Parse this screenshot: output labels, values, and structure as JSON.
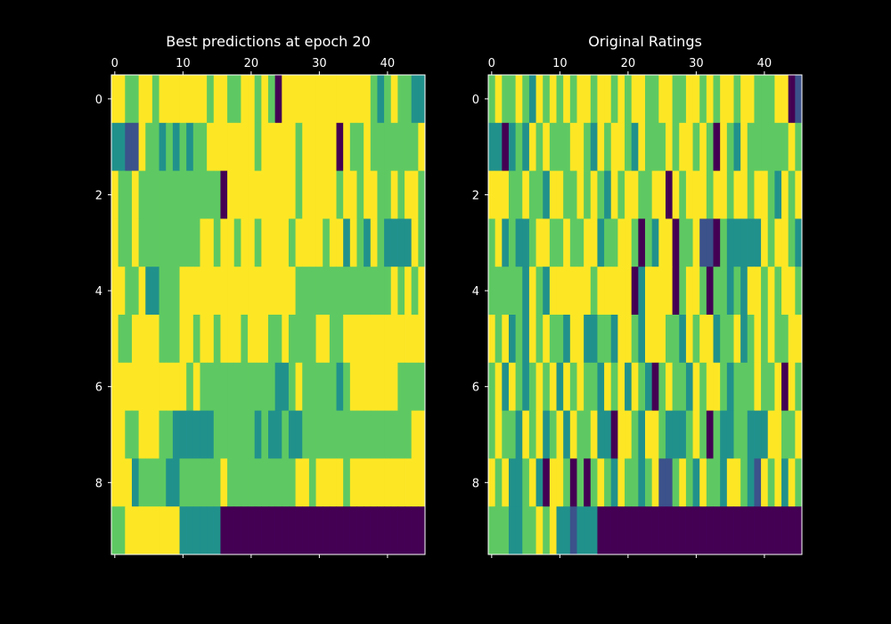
{
  "colors": {
    "background": "#000000",
    "foreground": "#ffffff",
    "colormap": "viridis",
    "palette": [
      "#440154",
      "#3b528b",
      "#21918c",
      "#5ec962",
      "#fde725"
    ]
  },
  "chart_data": [
    {
      "type": "heatmap",
      "title": "Best predictions at epoch 20",
      "xlabel": "",
      "ylabel": "",
      "x_ticks": [
        0,
        10,
        20,
        30,
        40
      ],
      "y_ticks": [
        0,
        2,
        4,
        6,
        8
      ],
      "x_tick_position": "top-and-bottom",
      "grid": false,
      "color_range": [
        0,
        4
      ],
      "values": [
        [
          4,
          4,
          3,
          3,
          4,
          4,
          3,
          4,
          4,
          4,
          4,
          4,
          4,
          4,
          3,
          4,
          4,
          3,
          3,
          4,
          4,
          3,
          4,
          3,
          0,
          4,
          4,
          4,
          4,
          4,
          4,
          4,
          4,
          4,
          4,
          4,
          4,
          4,
          3,
          2,
          3,
          4,
          3,
          3,
          2,
          2
        ],
        [
          2,
          2,
          1,
          1,
          4,
          3,
          3,
          2,
          3,
          2,
          3,
          2,
          3,
          3,
          4,
          4,
          4,
          4,
          4,
          4,
          4,
          3,
          4,
          4,
          4,
          4,
          4,
          3,
          4,
          4,
          4,
          4,
          4,
          0,
          4,
          3,
          3,
          4,
          3,
          3,
          3,
          3,
          3,
          3,
          3,
          4
        ],
        [
          4,
          3,
          3,
          4,
          3,
          3,
          3,
          3,
          3,
          3,
          3,
          3,
          3,
          3,
          3,
          3,
          0,
          4,
          4,
          4,
          4,
          4,
          4,
          4,
          4,
          4,
          4,
          3,
          4,
          4,
          4,
          4,
          4,
          3,
          4,
          4,
          3,
          4,
          4,
          3,
          3,
          4,
          3,
          4,
          4,
          3
        ],
        [
          4,
          3,
          3,
          4,
          3,
          3,
          3,
          3,
          3,
          3,
          3,
          3,
          3,
          4,
          4,
          3,
          4,
          4,
          3,
          4,
          4,
          3,
          4,
          4,
          4,
          4,
          3,
          4,
          4,
          4,
          4,
          3,
          4,
          4,
          2,
          4,
          3,
          2,
          4,
          3,
          2,
          2,
          2,
          2,
          4,
          3
        ],
        [
          4,
          4,
          3,
          3,
          4,
          2,
          2,
          3,
          3,
          3,
          4,
          4,
          4,
          4,
          4,
          4,
          4,
          4,
          4,
          4,
          4,
          4,
          4,
          4,
          4,
          4,
          4,
          3,
          3,
          3,
          3,
          3,
          3,
          3,
          3,
          3,
          3,
          3,
          3,
          3,
          3,
          4,
          3,
          4,
          3,
          4
        ],
        [
          4,
          3,
          3,
          4,
          4,
          4,
          4,
          3,
          3,
          3,
          4,
          4,
          3,
          4,
          4,
          3,
          4,
          4,
          4,
          3,
          4,
          4,
          4,
          3,
          3,
          4,
          3,
          3,
          3,
          3,
          4,
          4,
          3,
          3,
          4,
          4,
          4,
          4,
          4,
          4,
          4,
          4,
          4,
          4,
          4,
          4
        ],
        [
          4,
          4,
          4,
          4,
          4,
          4,
          4,
          4,
          4,
          4,
          4,
          3,
          4,
          3,
          3,
          3,
          3,
          3,
          3,
          3,
          3,
          3,
          3,
          3,
          2,
          2,
          3,
          4,
          3,
          3,
          3,
          3,
          3,
          2,
          3,
          4,
          4,
          4,
          4,
          4,
          4,
          4,
          3,
          3,
          3,
          3
        ],
        [
          4,
          4,
          3,
          3,
          4,
          4,
          4,
          3,
          3,
          2,
          2,
          2,
          2,
          2,
          2,
          3,
          3,
          3,
          3,
          3,
          3,
          2,
          3,
          2,
          2,
          3,
          2,
          2,
          3,
          3,
          3,
          3,
          3,
          3,
          3,
          3,
          3,
          3,
          3,
          3,
          3,
          3,
          3,
          3,
          4,
          4
        ],
        [
          4,
          4,
          4,
          2,
          3,
          3,
          3,
          3,
          2,
          2,
          3,
          3,
          3,
          3,
          3,
          3,
          4,
          3,
          3,
          3,
          3,
          3,
          3,
          3,
          3,
          3,
          3,
          4,
          4,
          3,
          4,
          4,
          4,
          4,
          3,
          4,
          4,
          4,
          4,
          4,
          4,
          4,
          4,
          4,
          4,
          4
        ],
        [
          3,
          3,
          4,
          4,
          4,
          4,
          4,
          4,
          4,
          4,
          2,
          2,
          2,
          2,
          2,
          2,
          0,
          0,
          0,
          0,
          0,
          0,
          0,
          0,
          0,
          0,
          0,
          0,
          0,
          0,
          0,
          0,
          0,
          0,
          0,
          0,
          0,
          0,
          0,
          0,
          0,
          0,
          0,
          0,
          0,
          0
        ]
      ]
    },
    {
      "type": "heatmap",
      "title": "Original Ratings",
      "xlabel": "",
      "ylabel": "",
      "x_ticks": [
        0,
        10,
        20,
        30,
        40
      ],
      "y_ticks": [
        0,
        2,
        4,
        6,
        8
      ],
      "x_tick_position": "top-and-bottom",
      "grid": false,
      "color_range": [
        0,
        4
      ],
      "values": [
        [
          3,
          4,
          3,
          3,
          4,
          3,
          2,
          4,
          3,
          4,
          3,
          4,
          3,
          4,
          4,
          3,
          4,
          4,
          3,
          4,
          3,
          4,
          4,
          3,
          3,
          4,
          4,
          3,
          3,
          4,
          4,
          3,
          4,
          3,
          4,
          4,
          3,
          4,
          4,
          3,
          3,
          3,
          4,
          4,
          0,
          1
        ],
        [
          2,
          2,
          0,
          2,
          3,
          2,
          4,
          3,
          4,
          3,
          3,
          3,
          4,
          4,
          3,
          2,
          4,
          3,
          4,
          4,
          3,
          2,
          4,
          3,
          3,
          3,
          4,
          3,
          4,
          4,
          3,
          4,
          3,
          0,
          4,
          3,
          2,
          4,
          3,
          3,
          3,
          3,
          3,
          3,
          4,
          3
        ],
        [
          4,
          4,
          4,
          3,
          3,
          4,
          3,
          3,
          2,
          4,
          4,
          3,
          3,
          4,
          3,
          4,
          3,
          2,
          4,
          3,
          4,
          4,
          3,
          3,
          4,
          4,
          0,
          4,
          3,
          4,
          4,
          4,
          3,
          4,
          4,
          3,
          4,
          4,
          3,
          4,
          4,
          3,
          2,
          4,
          3,
          4
        ],
        [
          3,
          4,
          2,
          3,
          2,
          2,
          3,
          4,
          4,
          3,
          3,
          4,
          3,
          3,
          4,
          4,
          2,
          3,
          3,
          4,
          4,
          3,
          0,
          3,
          2,
          4,
          4,
          0,
          3,
          3,
          4,
          1,
          1,
          0,
          3,
          2,
          2,
          2,
          2,
          2,
          4,
          3,
          4,
          4,
          3,
          2
        ],
        [
          3,
          3,
          3,
          3,
          3,
          2,
          4,
          3,
          2,
          4,
          4,
          4,
          4,
          4,
          4,
          3,
          4,
          4,
          4,
          4,
          4,
          0,
          2,
          4,
          4,
          4,
          4,
          0,
          3,
          4,
          4,
          3,
          0,
          3,
          3,
          2,
          3,
          2,
          4,
          4,
          3,
          4,
          3,
          4,
          4,
          3
        ],
        [
          4,
          3,
          4,
          2,
          3,
          2,
          4,
          3,
          4,
          3,
          3,
          2,
          4,
          4,
          2,
          2,
          3,
          3,
          2,
          4,
          4,
          3,
          2,
          4,
          4,
          4,
          3,
          3,
          2,
          4,
          3,
          4,
          4,
          2,
          3,
          3,
          4,
          2,
          3,
          4,
          3,
          4,
          3,
          3,
          4,
          4
        ],
        [
          3,
          4,
          2,
          4,
          3,
          2,
          3,
          4,
          3,
          4,
          2,
          4,
          3,
          4,
          3,
          3,
          2,
          4,
          3,
          4,
          2,
          4,
          3,
          2,
          0,
          3,
          4,
          3,
          3,
          2,
          4,
          3,
          4,
          4,
          3,
          2,
          3,
          3,
          3,
          4,
          3,
          3,
          4,
          0,
          4,
          3
        ],
        [
          3,
          4,
          3,
          3,
          2,
          4,
          3,
          4,
          2,
          3,
          4,
          2,
          4,
          3,
          3,
          4,
          2,
          2,
          0,
          4,
          4,
          3,
          2,
          4,
          4,
          3,
          2,
          2,
          2,
          3,
          4,
          3,
          0,
          3,
          2,
          2,
          3,
          3,
          2,
          2,
          2,
          4,
          4,
          3,
          3,
          4
        ],
        [
          4,
          3,
          4,
          2,
          2,
          3,
          4,
          2,
          0,
          4,
          4,
          3,
          0,
          3,
          0,
          3,
          4,
          3,
          2,
          4,
          3,
          3,
          2,
          3,
          4,
          1,
          1,
          3,
          4,
          3,
          2,
          4,
          3,
          3,
          2,
          4,
          4,
          3,
          2,
          1,
          4,
          3,
          4,
          2,
          4,
          3
        ],
        [
          3,
          3,
          3,
          2,
          2,
          3,
          3,
          4,
          3,
          4,
          2,
          2,
          1,
          2,
          2,
          2,
          0,
          0,
          0,
          0,
          0,
          0,
          0,
          0,
          0,
          0,
          0,
          0,
          0,
          0,
          0,
          0,
          0,
          0,
          0,
          0,
          0,
          0,
          0,
          0,
          0,
          0,
          0,
          0,
          0,
          0
        ]
      ]
    }
  ]
}
